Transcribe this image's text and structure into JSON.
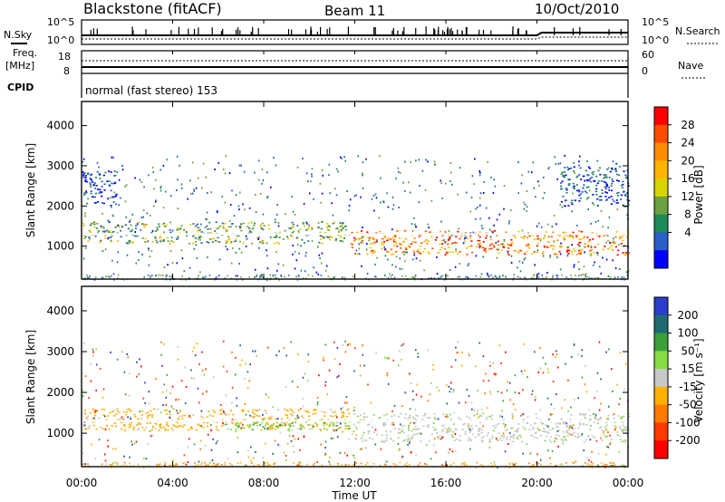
{
  "header": {
    "site": "Blackstone (fitACF)",
    "beam": "Beam 11",
    "date": "10/Oct/2010"
  },
  "strips": {
    "nsky_label": "N.Sky",
    "nsearch_label": "N.Search",
    "freq_label_1": "Freq.",
    "freq_label_2": "[MHz]",
    "nave_label": "Nave",
    "cpid_label": "CPID",
    "cpid_value": "normal (fast stereo) 153",
    "nsky_ticks": [
      "10^5",
      "10^0"
    ],
    "nsearch_ticks": [
      "10^5",
      "10^0"
    ],
    "freq_ticks": [
      "18",
      "8"
    ],
    "nave_ticks": [
      "60",
      "0"
    ]
  },
  "chart_data": [
    {
      "type": "heatmap",
      "panel": "power",
      "ylabel": "Slant Range [km]",
      "xlabel": "",
      "ylim": [
        180,
        4600
      ],
      "yticks": [
        1000,
        2000,
        3000,
        4000
      ],
      "colorbar": {
        "label": "Power [dB]",
        "ticks": [
          "28",
          "24",
          "20",
          "16",
          "12",
          "8",
          "4"
        ],
        "colors": [
          "#ff0000",
          "#ff4c00",
          "#ff8c00",
          "#ffb400",
          "#d8d400",
          "#6ca040",
          "#1e8a5a",
          "#2a5ec8",
          "#0000ff"
        ]
      },
      "bands": [
        {
          "t0": 0.0,
          "t1": 11.8,
          "r0": 1080,
          "r1": 1620,
          "level": "mid"
        },
        {
          "t0": 11.8,
          "t1": 24.0,
          "r0": 800,
          "r1": 1400,
          "level": "high"
        },
        {
          "t0": 0.0,
          "t1": 1.5,
          "r0": 2000,
          "r1": 2900,
          "level": "low"
        },
        {
          "t0": 21.0,
          "t1": 24.0,
          "r0": 2000,
          "r1": 3000,
          "level": "low"
        }
      ]
    },
    {
      "type": "heatmap",
      "panel": "velocity",
      "ylabel": "Slant Range [km]",
      "xlabel": "Time UT",
      "xlim": [
        0,
        24
      ],
      "xticks": [
        "00:00",
        "04:00",
        "08:00",
        "12:00",
        "16:00",
        "20:00",
        "00:00"
      ],
      "ylim": [
        180,
        4600
      ],
      "yticks": [
        1000,
        2000,
        3000,
        4000
      ],
      "colorbar": {
        "label": "Velocity [m s⁻¹]",
        "ticks": [
          "200",
          "100",
          "50",
          "15",
          "-15",
          "-50",
          "-100",
          "-200"
        ],
        "colors": [
          "#2a3ccc",
          "#1e6a70",
          "#3aa03a",
          "#88dc44",
          "#c8c8c8",
          "#ffb000",
          "#ff7a00",
          "#ff3800",
          "#ff0000"
        ]
      },
      "bands": [
        {
          "t0": 0.0,
          "t1": 11.8,
          "r0": 1080,
          "r1": 1620,
          "level": "negative"
        },
        {
          "t0": 6.0,
          "t1": 11.8,
          "r0": 1100,
          "r1": 1350,
          "level": "positive"
        },
        {
          "t0": 11.8,
          "t1": 24.0,
          "r0": 800,
          "r1": 1500,
          "level": "zero"
        }
      ]
    }
  ]
}
